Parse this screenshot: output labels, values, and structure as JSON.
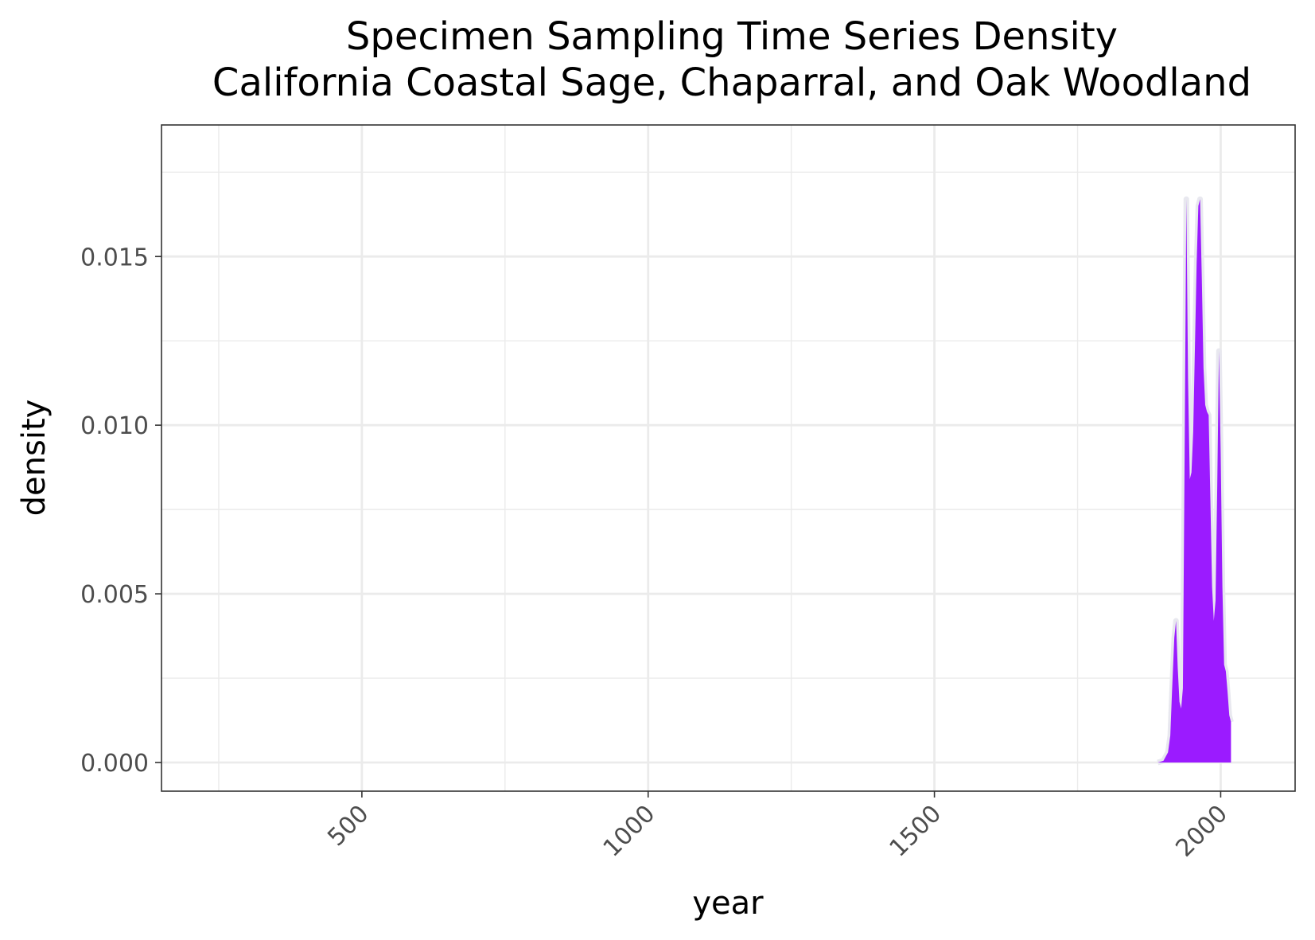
{
  "chart_data": {
    "type": "area",
    "title": "Specimen Sampling Time Series Density",
    "subtitle": "California Coastal Sage, Chaparral, and Oak Woodland",
    "xlabel": "year",
    "ylabel": "density",
    "xlim": [
      150,
      2130
    ],
    "ylim": [
      -0.00085,
      0.0189
    ],
    "x_ticks": [
      500,
      1000,
      1500,
      2000
    ],
    "x_tick_labels": [
      "500",
      "1000",
      "1500",
      "2000"
    ],
    "x_minor_ticks": [
      250,
      750,
      1250,
      1750
    ],
    "y_ticks": [
      0.0,
      0.005,
      0.01,
      0.015
    ],
    "y_tick_labels": [
      "0.000",
      "0.005",
      "0.010",
      "0.015"
    ],
    "y_minor_ticks": [
      0.0025,
      0.0075,
      0.0125,
      0.0175
    ],
    "grid": true,
    "legend": "none",
    "colors": {
      "fill": "#9b1bff",
      "outline": "#e8e8ef"
    },
    "series": [
      {
        "x": [
          1890,
          1900,
          1908,
          1912,
          1915,
          1919,
          1922,
          1925,
          1928,
          1931,
          1934,
          1937,
          1940,
          1943,
          1946,
          1949,
          1952,
          1955,
          1958,
          1961,
          1964,
          1967,
          1970,
          1973,
          1976,
          1979,
          1982,
          1985,
          1988,
          1991,
          1994,
          1997,
          2000,
          2003,
          2006,
          2009,
          2012,
          2015,
          2018
        ],
        "y": [
          0.0,
          5e-05,
          0.0003,
          0.0008,
          0.0021,
          0.0037,
          0.0042,
          0.0028,
          0.0018,
          0.0016,
          0.0022,
          0.0091,
          0.0167,
          0.0114,
          0.0084,
          0.0086,
          0.0098,
          0.0123,
          0.0148,
          0.0165,
          0.0167,
          0.0144,
          0.0117,
          0.0106,
          0.0104,
          0.0103,
          0.0078,
          0.0052,
          0.0042,
          0.0048,
          0.0082,
          0.0122,
          0.0092,
          0.0052,
          0.0029,
          0.0027,
          0.0021,
          0.0014,
          0.0012
        ]
      }
    ]
  }
}
